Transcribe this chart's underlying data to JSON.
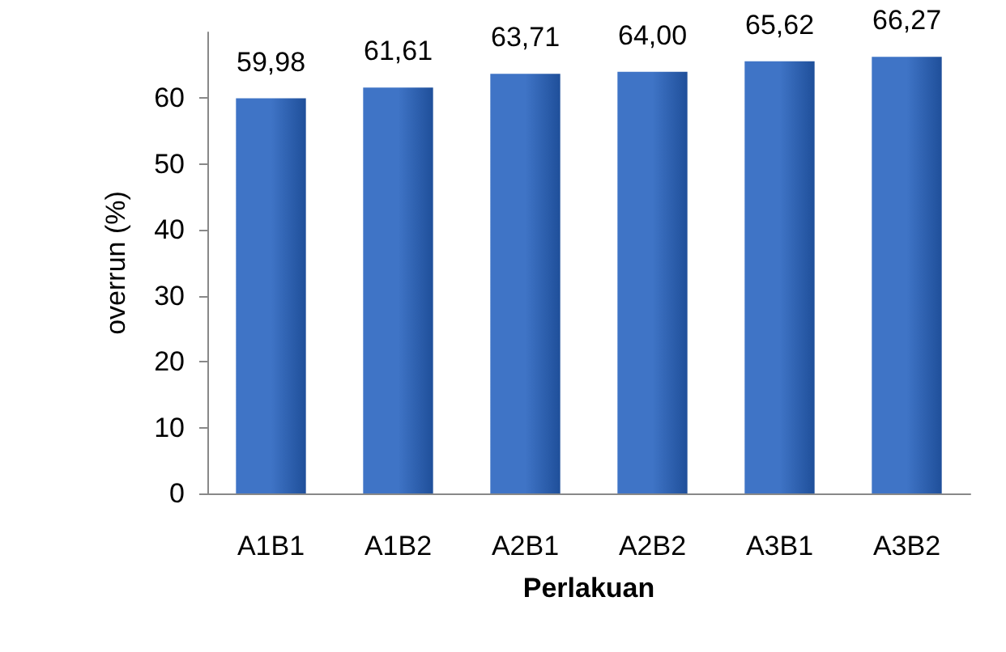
{
  "chart_data": {
    "type": "bar",
    "xlabel": "Perlakuan",
    "ylabel": "overrun (%)",
    "categories": [
      "A1B1",
      "A1B2",
      "A2B1",
      "A2B2",
      "A3B1",
      "A3B2"
    ],
    "values": [
      59.98,
      61.61,
      63.71,
      64.0,
      65.62,
      66.27
    ],
    "value_labels": [
      "59,98",
      "61,61",
      "63,71",
      "64,00",
      "65,62",
      "66,27"
    ],
    "color": "#3f74c6",
    "ylim": [
      0,
      70
    ],
    "yticks": [
      0,
      10,
      20,
      30,
      40,
      50,
      60
    ],
    "grid": false
  }
}
